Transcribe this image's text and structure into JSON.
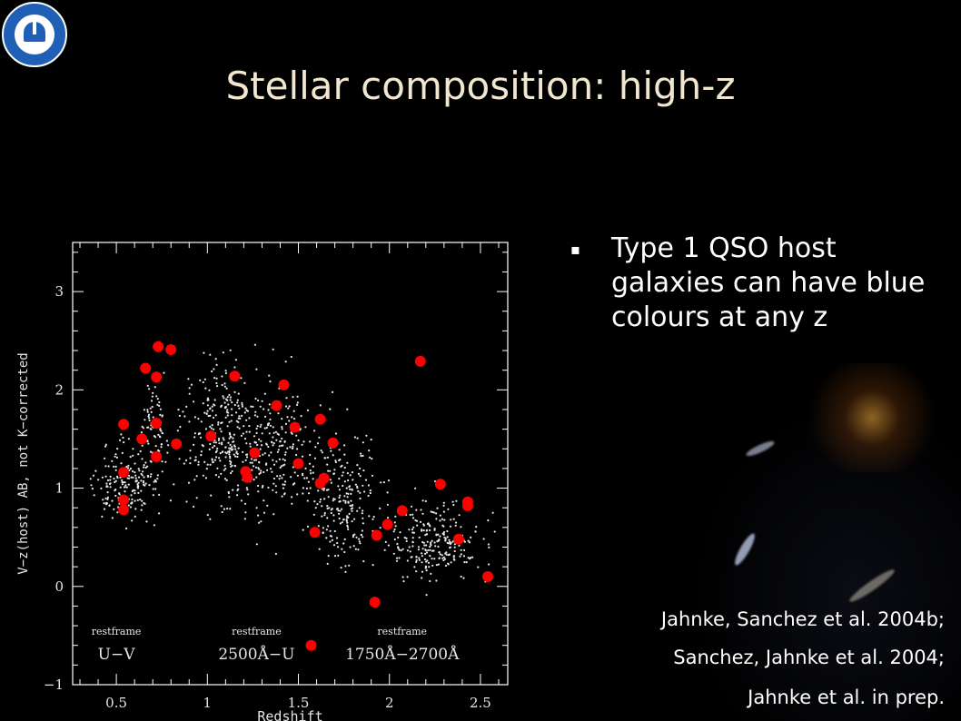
{
  "slide": {
    "title": "Stellar composition: high-z",
    "bullets": [
      {
        "marker": "▪",
        "text": "Type 1 QSO host galaxies can have blue colours at any z"
      }
    ],
    "citations": [
      "Jahnke, Sanchez et al. 2004b;",
      "Sanchez, Jahnke et al. 2004;",
      "Jahnke et al. in prep."
    ],
    "logo_icon": "institute-seal-telescope-icon"
  },
  "chart_data": {
    "type": "scatter",
    "title": "",
    "xlabel": "Redshift",
    "ylabel": "V−z(host) AB, not K−corrected",
    "xlim": [
      0.26,
      2.65
    ],
    "ylim": [
      -1.0,
      3.5
    ],
    "xticks": [
      "0.5",
      "1",
      "1.5",
      "2",
      "2.5"
    ],
    "yticks": [
      "−1",
      "0",
      "1",
      "2",
      "3"
    ],
    "grid": false,
    "bands": [
      {
        "label": "restframe",
        "sublabel": "U−V",
        "x": 0.5
      },
      {
        "label": "restframe",
        "sublabel": "2500Å−U",
        "x": 1.27
      },
      {
        "label": "restframe",
        "sublabel": "1750Å−2700Å",
        "x": 2.07
      }
    ],
    "series": [
      {
        "color": "#ff0000",
        "x": [
          0.54,
          0.54,
          0.54,
          0.54,
          0.64,
          0.66,
          0.72,
          0.72,
          0.72,
          0.73,
          0.8,
          0.83,
          1.02,
          1.15,
          1.21,
          1.22,
          1.26,
          1.38,
          1.42,
          1.48,
          1.5,
          1.57,
          1.59,
          1.62,
          1.62,
          1.64,
          1.64,
          1.69,
          1.92,
          1.93,
          1.99,
          2.07,
          2.17,
          2.28,
          2.38,
          2.43,
          2.43,
          2.54
        ],
        "y": [
          1.65,
          1.16,
          0.88,
          0.78,
          1.5,
          2.22,
          1.66,
          1.32,
          2.13,
          2.44,
          2.41,
          1.45,
          1.53,
          2.14,
          1.17,
          1.11,
          1.36,
          1.84,
          2.05,
          1.62,
          1.25,
          -0.6,
          0.55,
          1.7,
          1.05,
          1.1,
          1.1,
          1.46,
          -0.16,
          0.52,
          0.63,
          0.77,
          2.29,
          1.04,
          0.48,
          0.86,
          0.82,
          0.1
        ]
      },
      {
        "color": "#ffffff",
        "description_ref": "field-population"
      }
    ]
  }
}
